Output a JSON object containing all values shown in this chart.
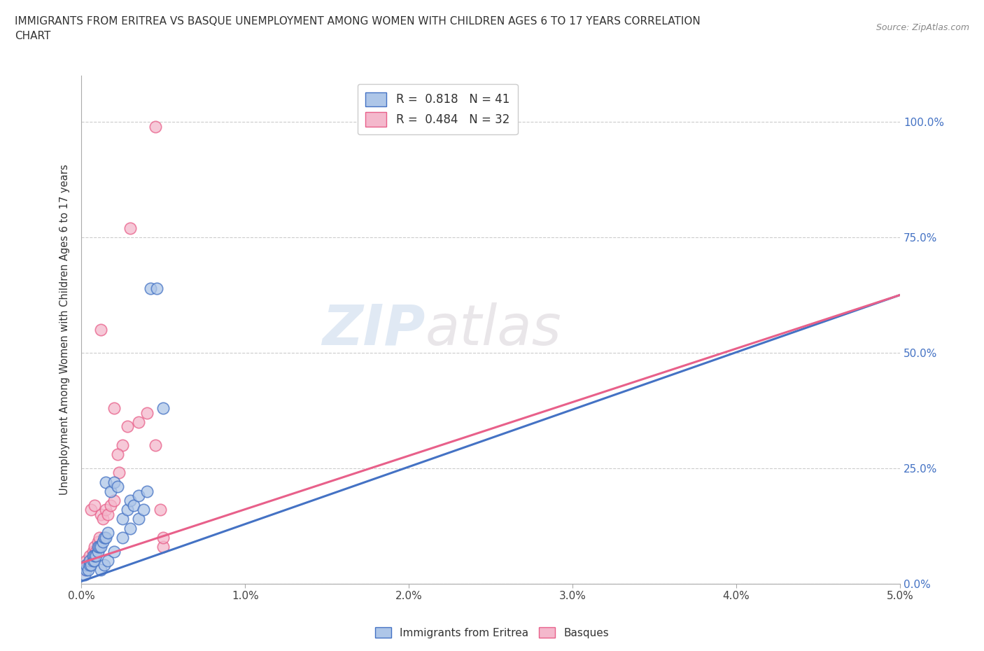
{
  "title": "IMMIGRANTS FROM ERITREA VS BASQUE UNEMPLOYMENT AMONG WOMEN WITH CHILDREN AGES 6 TO 17 YEARS CORRELATION\nCHART",
  "source": "Source: ZipAtlas.com",
  "ylabel": "Unemployment Among Women with Children Ages 6 to 17 years",
  "xlim": [
    0.0,
    0.05
  ],
  "ylim": [
    0.0,
    1.1
  ],
  "yticks": [
    0.0,
    0.25,
    0.5,
    0.75,
    1.0
  ],
  "ytick_labels": [
    "0.0%",
    "25.0%",
    "50.0%",
    "75.0%",
    "100.0%"
  ],
  "xticks": [
    0.0,
    0.01,
    0.02,
    0.03,
    0.04,
    0.05
  ],
  "xtick_labels": [
    "0.0%",
    "1.0%",
    "2.0%",
    "3.0%",
    "4.0%",
    "5.0%"
  ],
  "legend_r1": "R =  0.818   N = 41",
  "legend_r2": "R =  0.484   N = 32",
  "color_blue": "#aec6e8",
  "color_pink": "#f4b8cc",
  "line_color_blue": "#4472c4",
  "line_color_pink": "#e8608a",
  "watermark_zip": "ZIP",
  "watermark_atlas": "atlas",
  "blue_scatter": [
    [
      0.0002,
      0.02
    ],
    [
      0.0003,
      0.03
    ],
    [
      0.0003,
      0.04
    ],
    [
      0.0004,
      0.03
    ],
    [
      0.0005,
      0.04
    ],
    [
      0.0005,
      0.05
    ],
    [
      0.0006,
      0.04
    ],
    [
      0.0007,
      0.05
    ],
    [
      0.0007,
      0.06
    ],
    [
      0.0008,
      0.05
    ],
    [
      0.0008,
      0.06
    ],
    [
      0.0009,
      0.06
    ],
    [
      0.001,
      0.07
    ],
    [
      0.001,
      0.08
    ],
    [
      0.0011,
      0.08
    ],
    [
      0.0012,
      0.08
    ],
    [
      0.0013,
      0.09
    ],
    [
      0.0014,
      0.1
    ],
    [
      0.0015,
      0.1
    ],
    [
      0.0015,
      0.22
    ],
    [
      0.0016,
      0.11
    ],
    [
      0.0018,
      0.2
    ],
    [
      0.002,
      0.22
    ],
    [
      0.0022,
      0.21
    ],
    [
      0.0025,
      0.14
    ],
    [
      0.0028,
      0.16
    ],
    [
      0.003,
      0.18
    ],
    [
      0.0032,
      0.17
    ],
    [
      0.0035,
      0.19
    ],
    [
      0.004,
      0.2
    ],
    [
      0.0012,
      0.03
    ],
    [
      0.0014,
      0.04
    ],
    [
      0.0016,
      0.05
    ],
    [
      0.002,
      0.07
    ],
    [
      0.0025,
      0.1
    ],
    [
      0.003,
      0.12
    ],
    [
      0.0035,
      0.14
    ],
    [
      0.0038,
      0.16
    ],
    [
      0.0042,
      0.64
    ],
    [
      0.0046,
      0.64
    ],
    [
      0.005,
      0.38
    ]
  ],
  "pink_scatter": [
    [
      0.0002,
      0.03
    ],
    [
      0.0003,
      0.05
    ],
    [
      0.0004,
      0.04
    ],
    [
      0.0005,
      0.06
    ],
    [
      0.0006,
      0.05
    ],
    [
      0.0007,
      0.07
    ],
    [
      0.0008,
      0.08
    ],
    [
      0.0009,
      0.07
    ],
    [
      0.001,
      0.09
    ],
    [
      0.0011,
      0.1
    ],
    [
      0.0012,
      0.15
    ],
    [
      0.0013,
      0.14
    ],
    [
      0.0015,
      0.16
    ],
    [
      0.0016,
      0.15
    ],
    [
      0.0018,
      0.17
    ],
    [
      0.002,
      0.18
    ],
    [
      0.0012,
      0.55
    ],
    [
      0.002,
      0.38
    ],
    [
      0.0025,
      0.3
    ],
    [
      0.0028,
      0.34
    ],
    [
      0.0035,
      0.35
    ],
    [
      0.004,
      0.37
    ],
    [
      0.0045,
      0.3
    ],
    [
      0.005,
      0.08
    ],
    [
      0.005,
      0.1
    ],
    [
      0.003,
      0.77
    ],
    [
      0.0045,
      0.99
    ],
    [
      0.0048,
      0.16
    ],
    [
      0.0023,
      0.24
    ],
    [
      0.0022,
      0.28
    ],
    [
      0.0006,
      0.16
    ],
    [
      0.0008,
      0.17
    ]
  ],
  "blue_line_x": [
    0.0,
    0.05
  ],
  "blue_line_y": [
    0.005,
    0.625
  ],
  "pink_line_x": [
    0.0,
    0.05
  ],
  "pink_line_y": [
    0.045,
    0.625
  ]
}
